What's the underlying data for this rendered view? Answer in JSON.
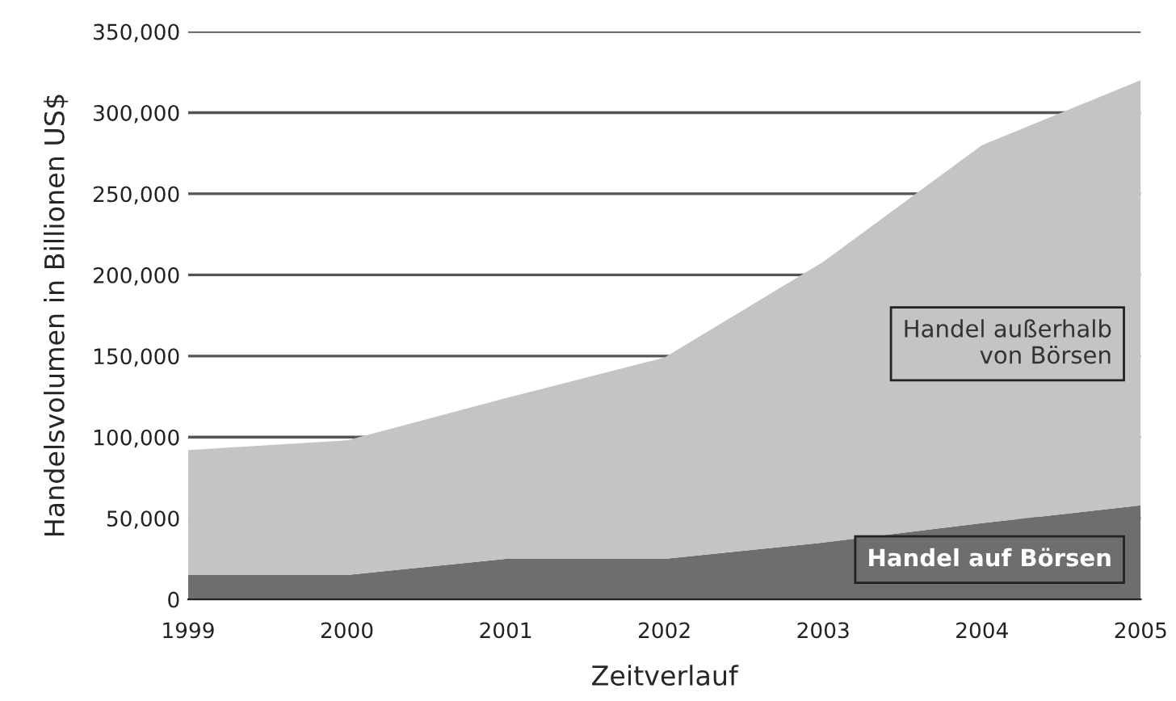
{
  "chart_data": {
    "type": "area",
    "stacked": true,
    "xlabel": "Zeitverlauf",
    "ylabel": "Handelsvolumen in Billionen US$",
    "categories": [
      "1999",
      "2000",
      "2001",
      "2002",
      "2003",
      "2004",
      "2005"
    ],
    "series": [
      {
        "name": "Handel auf Börsen",
        "color": "#6e6e6e",
        "values": [
          15000,
          15000,
          25000,
          25000,
          35000,
          47000,
          58000
        ]
      },
      {
        "name": "Handel außerhalb\nvon Börsen",
        "color": "#c4c4c4",
        "values": [
          77000,
          83000,
          99000,
          124000,
          173000,
          233000,
          262000
        ]
      }
    ],
    "ylim": [
      0,
      350000
    ],
    "yticks": [
      {
        "value": 0,
        "label": "0"
      },
      {
        "value": 50000,
        "label": "50,000"
      },
      {
        "value": 100000,
        "label": "100,000"
      },
      {
        "value": 150000,
        "label": "150,000"
      },
      {
        "value": 200000,
        "label": "200,000"
      },
      {
        "value": 250000,
        "label": "250,000"
      },
      {
        "value": 300000,
        "label": "300,000"
      },
      {
        "value": 350000,
        "label": "350,000"
      }
    ],
    "grid": "y",
    "legend": false
  }
}
